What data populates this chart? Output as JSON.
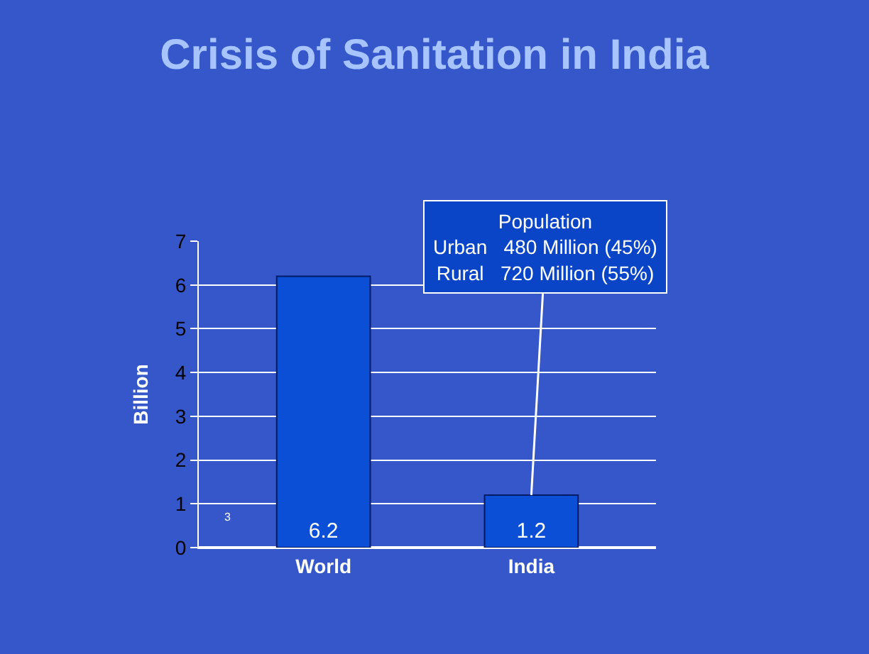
{
  "chart_data": {
    "type": "bar",
    "title": "Crisis of Sanitation in India",
    "ylabel": "Billion",
    "categories": [
      "World",
      "India"
    ],
    "values": [
      6.2,
      1.2
    ],
    "color": "#0b4fd6",
    "ylim": [
      0,
      7
    ],
    "yticks": [
      0,
      1,
      2,
      3,
      4,
      5,
      6,
      7
    ],
    "grid": "y",
    "legend": false,
    "data_labels": true,
    "annotations": [
      {
        "text": "Population\nUrban   480 Million (45%)\nRural   720 Million (55%)",
        "x": "India",
        "y": 1.2
      },
      "3"
    ]
  }
}
